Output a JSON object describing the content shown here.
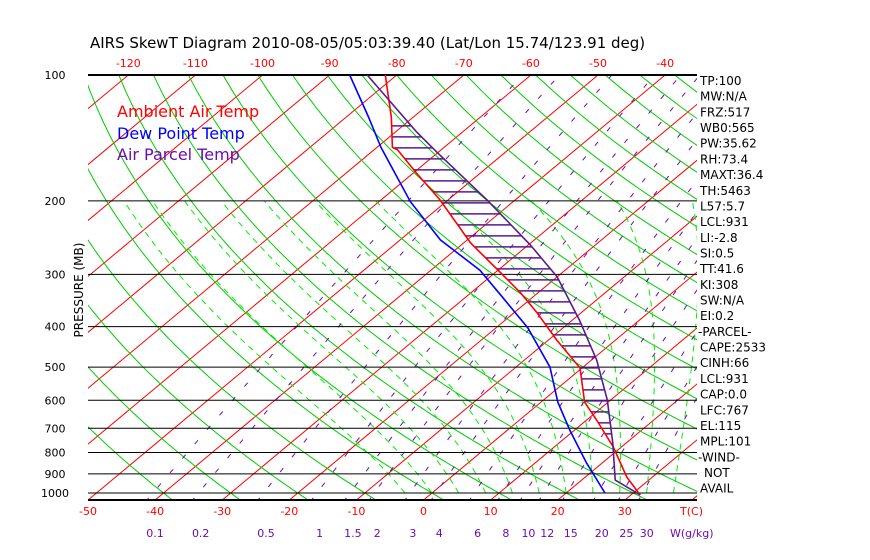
{
  "chart_data": {
    "type": "line",
    "subtype": "skew-t log-p",
    "title": "AIRS SkewT Diagram 2010-08-05/05:03:39.40 (Lat/Lon 15.74/123.91 deg)",
    "ylabel": "PRESSURE (MB)",
    "xlabel": "T(C)",
    "mixing_ratio_label": "W(g/kg)",
    "ylim": [
      1040,
      100
    ],
    "pressure_ticks": [
      "100",
      "200",
      "300",
      "400",
      "500",
      "600",
      "700",
      "800",
      "900",
      "1000"
    ],
    "pressure_tick_values": [
      100,
      200,
      300,
      400,
      500,
      600,
      700,
      800,
      900,
      1000
    ],
    "top_temp_ticks": [
      "-120",
      "-110",
      "-100",
      "-90",
      "-80",
      "-70",
      "-60",
      "-50",
      "-40"
    ],
    "top_temp_values": [
      -120,
      -110,
      -100,
      -90,
      -80,
      -70,
      -60,
      -50,
      -40
    ],
    "bottom_temp_ticks": [
      "-50",
      "-40",
      "-30",
      "-20",
      "-10",
      "0",
      "10",
      "20",
      "30"
    ],
    "bottom_temp_values": [
      -50,
      -40,
      -30,
      -20,
      -10,
      0,
      10,
      20,
      30
    ],
    "mixing_ratio_ticks": [
      "0.1",
      "0.2",
      "0.5",
      "1",
      "1.5",
      "2",
      "3",
      "4",
      "6",
      "8",
      "10",
      "12",
      "15",
      "20",
      "25",
      "30"
    ],
    "mixing_ratio_values": [
      0.1,
      0.2,
      0.5,
      1,
      1.5,
      2,
      3,
      4,
      6,
      8,
      10,
      12,
      15,
      20,
      25,
      30
    ],
    "legend": [
      {
        "name": "Ambient Air Temp",
        "color": "#ff0000"
      },
      {
        "name": "Dew Point Temp",
        "color": "#0000ff"
      },
      {
        "name": "Air Parcel Temp",
        "color": "#6a0dad"
      }
    ],
    "series": [
      {
        "name": "Ambient Air Temp",
        "p": [
          100,
          126,
          149,
          151,
          172,
          199,
          252,
          301,
          332,
          371,
          431,
          502,
          606,
          669,
          776,
          916,
          1011
        ],
        "t": [
          -81.7,
          -73.3,
          -67.7,
          -66.5,
          -59.4,
          -51.2,
          -39,
          -28.4,
          -22.6,
          -16.5,
          -8.7,
          -0.3,
          6.5,
          11.5,
          18.8,
          26.2,
          31.4
        ]
      },
      {
        "name": "Dew Point Temp",
        "p": [
          100,
          126,
          149,
          201,
          248,
          293,
          340,
          403,
          500,
          606,
          707,
          848,
          1000
        ],
        "t": [
          -87,
          -76.7,
          -69.4,
          -55.3,
          -44,
          -32.7,
          -24.5,
          -15.2,
          -4.9,
          2.5,
          9.3,
          17.7,
          25.8
        ]
      },
      {
        "name": "Air Parcel Temp",
        "p": [
          100,
          137,
          153,
          199,
          255,
          304,
          386,
          481,
          599,
          759,
          931,
          1011
        ],
        "t": [
          -84.4,
          -66.8,
          -60.2,
          -44.2,
          -29.7,
          -20,
          -8.9,
          0.8,
          9.5,
          18,
          25,
          31.4
        ]
      }
    ],
    "cape_hatch_range_mb": [
      767,
      130
    ]
  },
  "stats": [
    "TP:100",
    "MW:N/A",
    "FRZ:517",
    "WB0:565",
    "PW:35.62",
    "RH:73.4",
    "MAXT:36.4",
    "TH:5463",
    "L57:5.7",
    "LCL:931",
    "LI:-2.8",
    "SI:0.5",
    "TT:41.6",
    "KI:308",
    "SW:N/A",
    "EI:0.2",
    "-PARCEL-",
    "CAPE:2533",
    "CINH:66",
    "LCL:931",
    "CAP:0.0",
    "LFC:767",
    "EL:115",
    "MPL:101",
    "-WIND-",
    "NOT",
    "AVAIL"
  ],
  "colors": {
    "isotherm": "#ff0000",
    "dry_adiabat": "#00cc00",
    "moist_adiabat": "#00ee00",
    "mixing_ratio": "#6a0dad",
    "temp": "#ff0000",
    "dewpoint": "#0000ff",
    "parcel": "#5a1a8c"
  }
}
